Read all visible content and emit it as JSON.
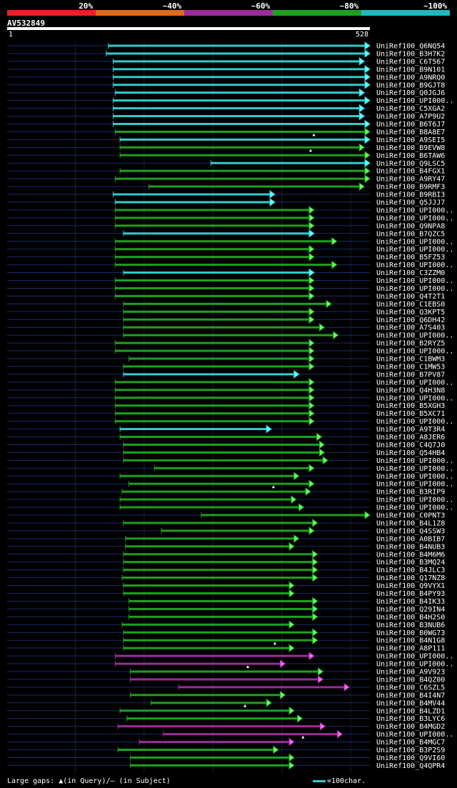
{
  "legend": [
    {
      "label": "20%",
      "color": "#e8202a"
    },
    {
      "label": "~40%",
      "color": "#e06a1c"
    },
    {
      "label": "~60%",
      "color": "#9a2c9a"
    },
    {
      "label": "~80%",
      "color": "#1fa01f"
    },
    {
      "label": "~100%",
      "color": "#1fb8c0"
    }
  ],
  "query": {
    "name": "AV532849",
    "start": "1",
    "end": "528"
  },
  "footer": {
    "gaps_text": "Large gaps: ▲(in Query)/– (in Subject)",
    "scale_text": "=100char."
  },
  "hits": [
    {
      "id": "UniRef100_Q6NQ54",
      "start": 148,
      "end": 528,
      "color": "#33cccc",
      "mark": null
    },
    {
      "id": "UniRef100_B3H7K2",
      "start": 145,
      "end": 528,
      "color": "#33cccc",
      "mark": null
    },
    {
      "id": "UniRef100_C6T567",
      "start": 155,
      "end": 520,
      "color": "#33cccc",
      "mark": null
    },
    {
      "id": "UniRef100_B9N101",
      "start": 155,
      "end": 528,
      "color": "#33cccc",
      "mark": null
    },
    {
      "id": "UniRef100_A9NRQ0",
      "start": 155,
      "end": 528,
      "color": "#33cccc",
      "mark": null
    },
    {
      "id": "UniRef100_B9GJT8",
      "start": 155,
      "end": 528,
      "color": "#33cccc",
      "mark": null
    },
    {
      "id": "UniRef100_Q0JGJ6",
      "start": 158,
      "end": 520,
      "color": "#33cccc",
      "mark": null
    },
    {
      "id": "UniRef100_UPI000..",
      "start": 155,
      "end": 528,
      "color": "#33cccc",
      "mark": null
    },
    {
      "id": "UniRef100_C5XGA2",
      "start": 155,
      "end": 520,
      "color": "#33cccc",
      "mark": null
    },
    {
      "id": "UniRef100_A7P9U2",
      "start": 155,
      "end": 520,
      "color": "#33cccc",
      "mark": null
    },
    {
      "id": "UniRef100_B6T6J7",
      "start": 155,
      "end": 528,
      "color": "#33cccc",
      "mark": null
    },
    {
      "id": "UniRef100_B8A8E7",
      "start": 158,
      "end": 528,
      "color": "#1fa01f",
      "mark": "query"
    },
    {
      "id": "UniRef100_A9SEI5",
      "start": 165,
      "end": 528,
      "color": "#33cccc",
      "mark": null
    },
    {
      "id": "UniRef100_B9EVW8",
      "start": 165,
      "end": 520,
      "color": "#1fa01f",
      "mark": "query"
    },
    {
      "id": "UniRef100_B6TAW6",
      "start": 165,
      "end": 528,
      "color": "#1fa01f",
      "mark": null
    },
    {
      "id": "UniRef100_Q9LSC5",
      "start": 297,
      "end": 528,
      "color": "#33cccc",
      "mark": null
    },
    {
      "id": "UniRef100_B4FGX1",
      "start": 165,
      "end": 528,
      "color": "#1fa01f",
      "mark": null
    },
    {
      "id": "UniRef100_A9RY47",
      "start": 158,
      "end": 528,
      "color": "#1fa01f",
      "mark": null
    },
    {
      "id": "UniRef100_B9RMF3",
      "start": 207,
      "end": 520,
      "color": "#1fa01f",
      "mark": null
    },
    {
      "id": "UniRef100_B9RBI3",
      "start": 155,
      "end": 390,
      "color": "#33cccc",
      "mark": null
    },
    {
      "id": "UniRef100_Q5JJJ7",
      "start": 158,
      "end": 390,
      "color": "#33cccc",
      "mark": null
    },
    {
      "id": "UniRef100_UPI000..",
      "start": 158,
      "end": 447,
      "color": "#1fa01f",
      "mark": null
    },
    {
      "id": "UniRef100_UPI000..",
      "start": 158,
      "end": 447,
      "color": "#1fa01f",
      "mark": null
    },
    {
      "id": "UniRef100_Q9NPA8",
      "start": 158,
      "end": 447,
      "color": "#1fa01f",
      "mark": null
    },
    {
      "id": "UniRef100_B7QZC5",
      "start": 170,
      "end": 447,
      "color": "#33cccc",
      "mark": null
    },
    {
      "id": "UniRef100_UPI000..",
      "start": 158,
      "end": 480,
      "color": "#1fa01f",
      "mark": null
    },
    {
      "id": "UniRef100_UPI000..",
      "start": 158,
      "end": 447,
      "color": "#1fa01f",
      "mark": null
    },
    {
      "id": "UniRef100_B5FZ53",
      "start": 158,
      "end": 447,
      "color": "#1fa01f",
      "mark": null
    },
    {
      "id": "UniRef100_UPI000..",
      "start": 158,
      "end": 480,
      "color": "#1fa01f",
      "mark": null
    },
    {
      "id": "UniRef100_C3ZZM0",
      "start": 170,
      "end": 447,
      "color": "#33cccc",
      "mark": null
    },
    {
      "id": "UniRef100_UPI000..",
      "start": 158,
      "end": 447,
      "color": "#1fa01f",
      "mark": null
    },
    {
      "id": "UniRef100_UPI000..",
      "start": 158,
      "end": 447,
      "color": "#1fa01f",
      "mark": null
    },
    {
      "id": "UniRef100_Q4T2T1",
      "start": 158,
      "end": 447,
      "color": "#1fa01f",
      "mark": null
    },
    {
      "id": "UniRef100_C1EBS0",
      "start": 170,
      "end": 472,
      "color": "#1fa01f",
      "mark": null
    },
    {
      "id": "UniRef100_Q3KPT5",
      "start": 170,
      "end": 447,
      "color": "#1fa01f",
      "mark": null
    },
    {
      "id": "UniRef100_Q6DH42",
      "start": 170,
      "end": 447,
      "color": "#1fa01f",
      "mark": null
    },
    {
      "id": "UniRef100_A7S403",
      "start": 170,
      "end": 462,
      "color": "#1fa01f",
      "mark": null
    },
    {
      "id": "UniRef100_UPI000..",
      "start": 170,
      "end": 482,
      "color": "#1fa01f",
      "mark": null
    },
    {
      "id": "UniRef100_B2RYZ5",
      "start": 158,
      "end": 447,
      "color": "#1fa01f",
      "mark": null
    },
    {
      "id": "UniRef100_UPI000..",
      "start": 158,
      "end": 447,
      "color": "#1fa01f",
      "mark": null
    },
    {
      "id": "UniRef100_C1BWM3",
      "start": 178,
      "end": 447,
      "color": "#1fa01f",
      "mark": null
    },
    {
      "id": "UniRef100_C1MW53",
      "start": 170,
      "end": 447,
      "color": "#1fa01f",
      "mark": null
    },
    {
      "id": "UniRef100_B7PV87",
      "start": 170,
      "end": 425,
      "color": "#33cccc",
      "mark": null
    },
    {
      "id": "UniRef100_UPI000..",
      "start": 158,
      "end": 447,
      "color": "#1fa01f",
      "mark": null
    },
    {
      "id": "UniRef100_Q4H3N8",
      "start": 158,
      "end": 447,
      "color": "#1fa01f",
      "mark": null
    },
    {
      "id": "UniRef100_UPI000..",
      "start": 158,
      "end": 447,
      "color": "#1fa01f",
      "mark": null
    },
    {
      "id": "UniRef100_B5XGH3",
      "start": 158,
      "end": 447,
      "color": "#1fa01f",
      "mark": null
    },
    {
      "id": "UniRef100_B5XC71",
      "start": 158,
      "end": 447,
      "color": "#1fa01f",
      "mark": null
    },
    {
      "id": "UniRef100_UPI000..",
      "start": 158,
      "end": 447,
      "color": "#1fa01f",
      "mark": null
    },
    {
      "id": "UniRef100_A9T3R4",
      "start": 165,
      "end": 385,
      "color": "#33cccc",
      "mark": null
    },
    {
      "id": "UniRef100_A8JER6",
      "start": 165,
      "end": 458,
      "color": "#1fa01f",
      "mark": null
    },
    {
      "id": "UniRef100_C4Q7J0",
      "start": 170,
      "end": 462,
      "color": "#1fa01f",
      "mark": null
    },
    {
      "id": "UniRef100_Q54HB4",
      "start": 170,
      "end": 462,
      "color": "#1fa01f",
      "mark": null
    },
    {
      "id": "UniRef100_UPI000..",
      "start": 170,
      "end": 467,
      "color": "#1fa01f",
      "mark": null
    },
    {
      "id": "UniRef100_UPI000..",
      "start": 215,
      "end": 447,
      "color": "#1fa01f",
      "mark": null
    },
    {
      "id": "UniRef100_UPI000..",
      "start": 165,
      "end": 425,
      "color": "#1fa01f",
      "mark": null
    },
    {
      "id": "UniRef100_UPI000..",
      "start": 178,
      "end": 447,
      "color": "#1fa01f",
      "mark": "query"
    },
    {
      "id": "UniRef100_B3RIP9",
      "start": 168,
      "end": 442,
      "color": "#1fa01f",
      "mark": null
    },
    {
      "id": "UniRef100_UPI000..",
      "start": 165,
      "end": 421,
      "color": "#1fa01f",
      "mark": null
    },
    {
      "id": "UniRef100_UPI000..",
      "start": 165,
      "end": 432,
      "color": "#1fa01f",
      "mark": null
    },
    {
      "id": "UniRef100_C0PNT3",
      "start": 283,
      "end": 528,
      "color": "#1fa01f",
      "mark": null
    },
    {
      "id": "UniRef100_B4L1Z8",
      "start": 170,
      "end": 452,
      "color": "#1fa01f",
      "mark": null
    },
    {
      "id": "UniRef100_Q4SSW3",
      "start": 225,
      "end": 447,
      "color": "#1fa01f",
      "mark": null
    },
    {
      "id": "UniRef100_A0BIB7",
      "start": 173,
      "end": 425,
      "color": "#1fa01f",
      "mark": null
    },
    {
      "id": "UniRef100_B4NUB3",
      "start": 173,
      "end": 418,
      "color": "#1fa01f",
      "mark": null
    },
    {
      "id": "UniRef100_B4M6M6",
      "start": 170,
      "end": 452,
      "color": "#1fa01f",
      "mark": null
    },
    {
      "id": "UniRef100_B3MQ24",
      "start": 170,
      "end": 452,
      "color": "#1fa01f",
      "mark": null
    },
    {
      "id": "UniRef100_B4JLC3",
      "start": 170,
      "end": 452,
      "color": "#1fa01f",
      "mark": null
    },
    {
      "id": "UniRef100_Q17NZ8",
      "start": 168,
      "end": 452,
      "color": "#1fa01f",
      "mark": null
    },
    {
      "id": "UniRef100_Q9VYX1",
      "start": 170,
      "end": 418,
      "color": "#1fa01f",
      "mark": null
    },
    {
      "id": "UniRef100_B4PY93",
      "start": 170,
      "end": 418,
      "color": "#1fa01f",
      "mark": null
    },
    {
      "id": "UniRef100_B4IK33",
      "start": 178,
      "end": 452,
      "color": "#1fa01f",
      "mark": null
    },
    {
      "id": "UniRef100_Q29IN4",
      "start": 178,
      "end": 452,
      "color": "#1fa01f",
      "mark": null
    },
    {
      "id": "UniRef100_B4H2S0",
      "start": 178,
      "end": 452,
      "color": "#1fa01f",
      "mark": null
    },
    {
      "id": "UniRef100_B3NUB6",
      "start": 168,
      "end": 418,
      "color": "#1fa01f",
      "mark": null
    },
    {
      "id": "UniRef100_B0WG73",
      "start": 170,
      "end": 452,
      "color": "#1fa01f",
      "mark": null
    },
    {
      "id": "UniRef100_B4N1G8",
      "start": 170,
      "end": 452,
      "color": "#1fa01f",
      "mark": "query"
    },
    {
      "id": "UniRef100_A8P111",
      "start": 170,
      "end": 418,
      "color": "#1fa01f",
      "mark": null
    },
    {
      "id": "UniRef100_UPI000..",
      "start": 158,
      "end": 447,
      "color": "#9a2c9a",
      "mark": null
    },
    {
      "id": "UniRef100_UPI000..",
      "start": 158,
      "end": 405,
      "color": "#9a2c9a",
      "mark": "query"
    },
    {
      "id": "UniRef100_A9V923",
      "start": 180,
      "end": 460,
      "color": "#1fa01f",
      "mark": null
    },
    {
      "id": "UniRef100_B4QZ00",
      "start": 180,
      "end": 460,
      "color": "#9a2c9a",
      "mark": null
    },
    {
      "id": "UniRef100_C6SZL5",
      "start": 250,
      "end": 498,
      "color": "#9a2c9a",
      "mark": null
    },
    {
      "id": "UniRef100_B4I4N7",
      "start": 180,
      "end": 405,
      "color": "#1fa01f",
      "mark": null
    },
    {
      "id": "UniRef100_B4MV44",
      "start": 210,
      "end": 385,
      "color": "#1fa01f",
      "mark": "query"
    },
    {
      "id": "UniRef100_B4LZD1",
      "start": 165,
      "end": 418,
      "color": "#1fa01f",
      "mark": null
    },
    {
      "id": "UniRef100_B3LYC6",
      "start": 175,
      "end": 430,
      "color": "#1fa01f",
      "mark": null
    },
    {
      "id": "UniRef100_B4MGD2",
      "start": 162,
      "end": 463,
      "color": "#9a2c9a",
      "mark": null
    },
    {
      "id": "UniRef100_UPI000..",
      "start": 228,
      "end": 488,
      "color": "#9a2c9a",
      "mark": "query"
    },
    {
      "id": "UniRef100_B4MGC7",
      "start": 193,
      "end": 418,
      "color": "#9a2c9a",
      "mark": null
    },
    {
      "id": "UniRef100_B3P2S9",
      "start": 162,
      "end": 395,
      "color": "#1fa01f",
      "mark": null
    },
    {
      "id": "UniRef100_Q9VI60",
      "start": 180,
      "end": 418,
      "color": "#1fa01f",
      "mark": null
    },
    {
      "id": "UniRef100_Q4QPR4",
      "start": 180,
      "end": 418,
      "color": "#1fa01f",
      "mark": null
    }
  ]
}
